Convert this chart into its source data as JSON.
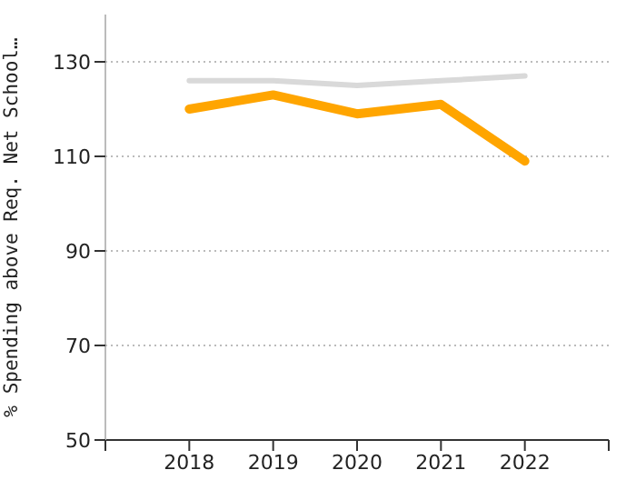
{
  "chart_data": {
    "type": "line",
    "ylabel": "% Spending above Req. Net School…",
    "x": [
      2018,
      2019,
      2020,
      2021,
      2022
    ],
    "series": [
      {
        "color": "#d9d9d9",
        "values": [
          126,
          126,
          125,
          126,
          127
        ]
      },
      {
        "color": "#ffa500",
        "values": [
          120,
          123,
          119,
          121,
          109
        ]
      }
    ],
    "xlim": [
      2017,
      2023
    ],
    "xticks": [
      {
        "value": 2017,
        "label": null
      },
      2018,
      2019,
      2020,
      2021,
      2022,
      {
        "value": 2023,
        "label": null
      }
    ],
    "ylim": [
      50,
      140
    ],
    "yticks": [
      50,
      70,
      90,
      110,
      130
    ],
    "grid": "y",
    "marker": "none",
    "line_style": "solid"
  }
}
